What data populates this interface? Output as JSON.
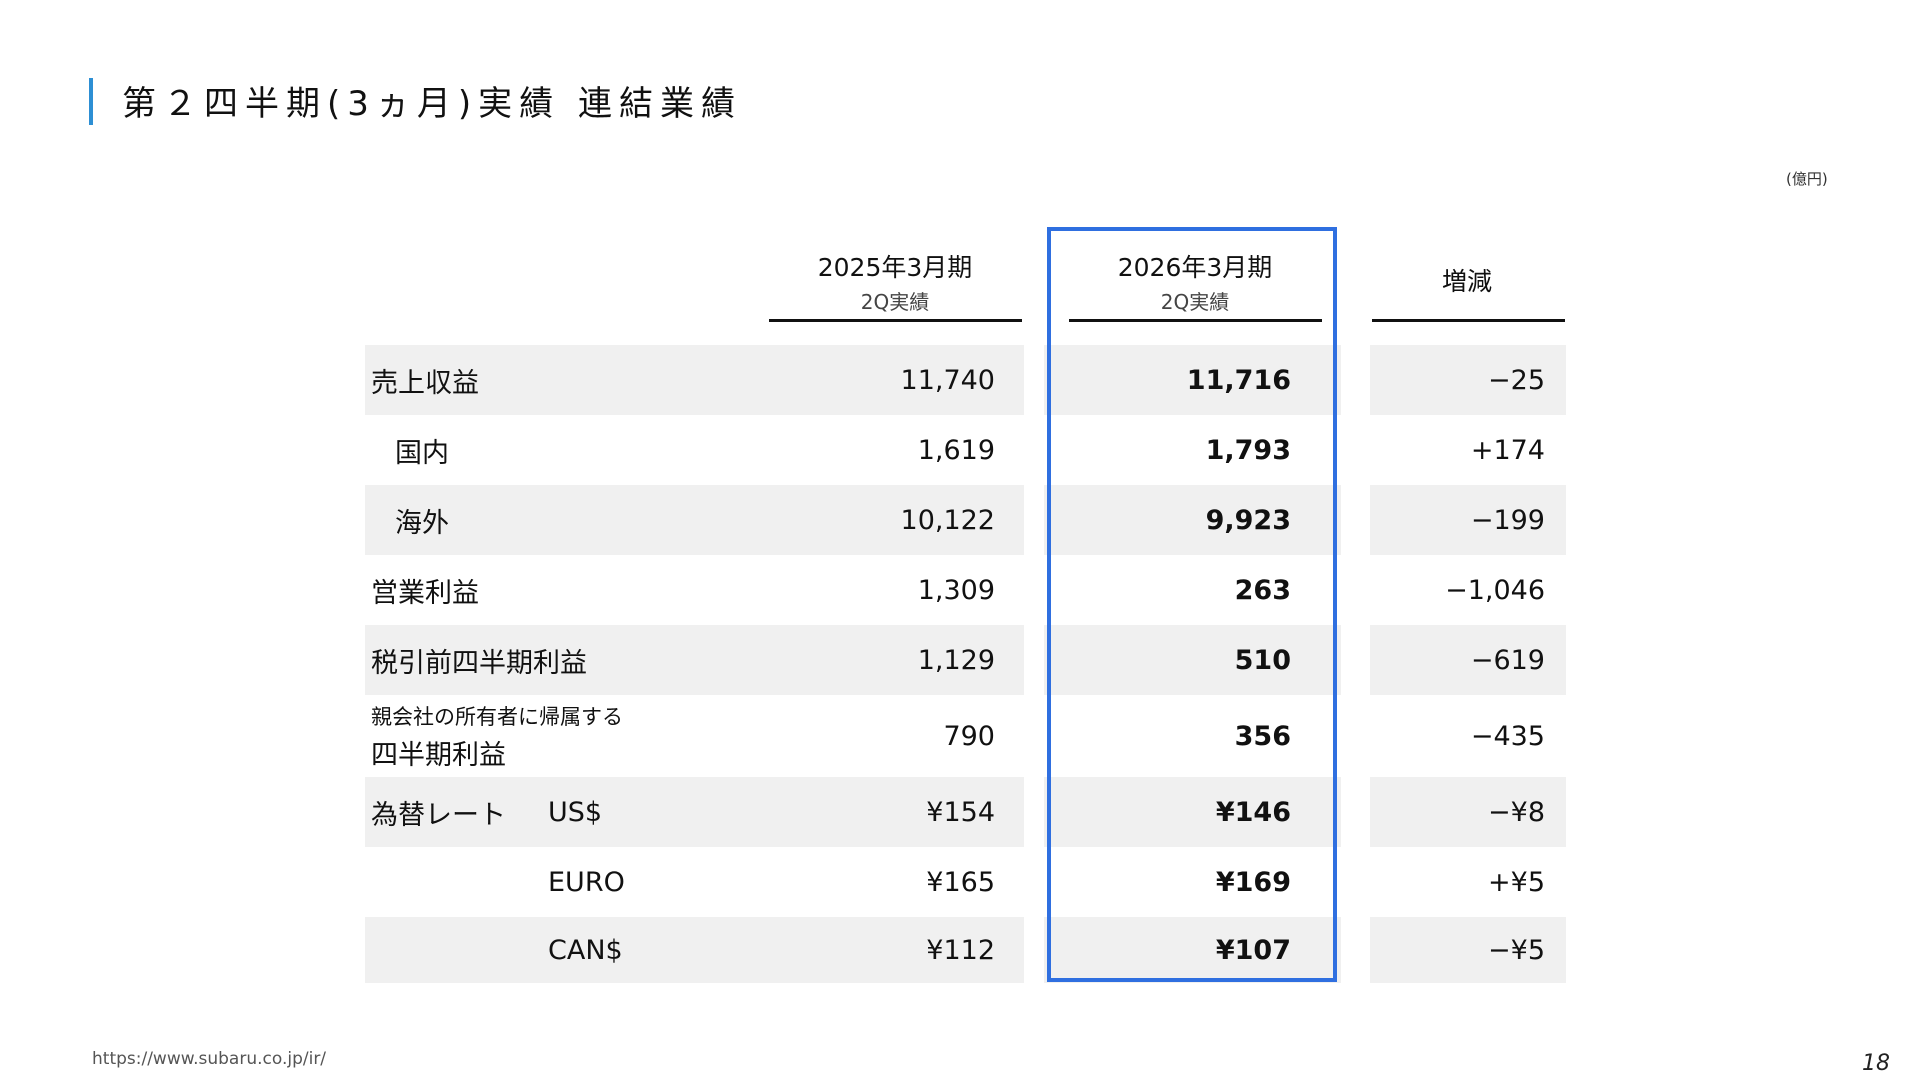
{
  "title": "第２四半期(3ヵ月)実績 連結業績",
  "unit": "(億円)",
  "columns": {
    "prev": {
      "main": "2025年3月期",
      "sub": "2Q実績"
    },
    "curr": {
      "main": "2026年3月期",
      "sub": "2Q実績"
    },
    "diff": {
      "main": "増減"
    }
  },
  "rows": [
    {
      "label": "売上収益",
      "prev": "11,740",
      "curr": "11,716",
      "diff": "−25"
    },
    {
      "label": "国内",
      "prev": "1,619",
      "curr": "1,793",
      "diff": "+174"
    },
    {
      "label": "海外",
      "prev": "10,122",
      "curr": "9,923",
      "diff": "−199"
    },
    {
      "label": "営業利益",
      "prev": "1,309",
      "curr": "263",
      "diff": "−1,046"
    },
    {
      "label": "税引前四半期利益",
      "prev": "1,129",
      "curr": "510",
      "diff": "−619"
    },
    {
      "label_line1": "親会社の所有者に帰属する",
      "label_line2": "四半期利益",
      "prev": "790",
      "curr": "356",
      "diff": "−435"
    },
    {
      "label": "為替レート",
      "sublabel": "US$",
      "prev": "¥154",
      "curr": "¥146",
      "diff": "−¥8"
    },
    {
      "sublabel": "EURO",
      "prev": "¥165",
      "curr": "¥169",
      "diff": "+¥5"
    },
    {
      "sublabel": "CAN$",
      "prev": "¥112",
      "curr": "¥107",
      "diff": "−¥5"
    }
  ],
  "footer": {
    "url": "https://www.subaru.co.jp/ir/",
    "page": "18"
  },
  "colors": {
    "title_bar": "#2d8fd4",
    "highlight": "#2f6fe0",
    "row_shade": "#f0f0f0"
  }
}
